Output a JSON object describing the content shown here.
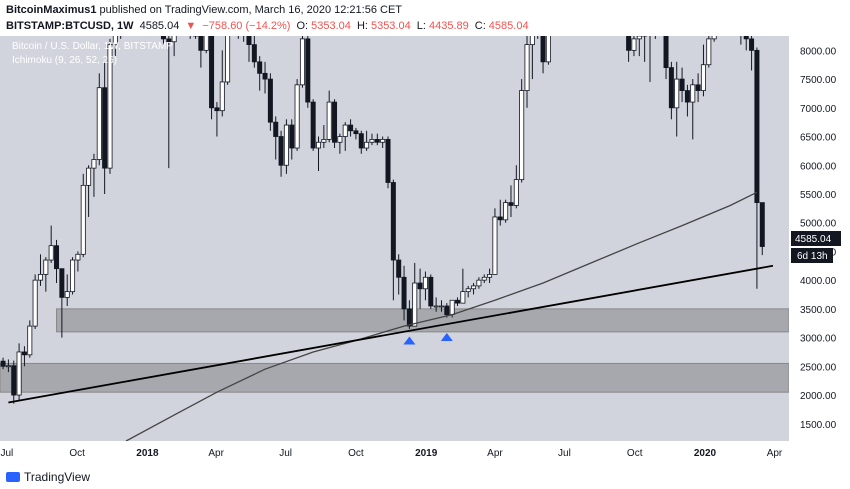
{
  "header": {
    "author": "BitcoinMaximus1",
    "published": "published on TradingView.com, March 16, 2020 12:21:56 CET",
    "symbol": "BITSTAMP:BTCUSD, 1W",
    "price": "4585.04",
    "arrow": "▼",
    "change": "−758.60 (−14.2%)",
    "open_label": "O:",
    "open": "5353.04",
    "high_label": "H:",
    "high": "5353.04",
    "low_label": "L:",
    "low": "4435.89",
    "close_label": "C:",
    "close": "4585.04"
  },
  "legend": {
    "title": "Bitcoin / U.S. Dollar, 1W, BITSTAMP",
    "indicator": "Ichimoku (9, 26, 52, 26)"
  },
  "price_tag": "4585.04",
  "countdown_tag": "6d 13h",
  "footer": {
    "brand": "TradingView"
  },
  "colors": {
    "background": "#d1d4dc",
    "candle": "#131722",
    "zone": "#a6a8ad",
    "ma_line": "#444444",
    "trendline": "#000000",
    "marker": "#2962ff",
    "price_tag_bg": "#131722"
  },
  "chart_data": {
    "type": "candlestick",
    "y_axis": {
      "ticks": [
        1500,
        2000,
        2500,
        3000,
        3500,
        4000,
        4500,
        5000,
        5500,
        6000,
        6500,
        7000,
        7500,
        8000
      ],
      "range": [
        1200,
        8250
      ]
    },
    "x_axis": {
      "ticks": [
        {
          "label": "Jul",
          "date": "2017-07-01"
        },
        {
          "label": "Oct",
          "date": "2017-10-01"
        },
        {
          "label": "2018",
          "date": "2018-01-01",
          "bold": true
        },
        {
          "label": "Apr",
          "date": "2018-04-01"
        },
        {
          "label": "Jul",
          "date": "2018-07-01"
        },
        {
          "label": "Oct",
          "date": "2018-10-01"
        },
        {
          "label": "2019",
          "date": "2019-01-01",
          "bold": true
        },
        {
          "label": "Apr",
          "date": "2019-04-01"
        },
        {
          "label": "Jul",
          "date": "2019-07-01"
        },
        {
          "label": "Oct",
          "date": "2019-10-01"
        },
        {
          "label": "2020",
          "date": "2020-01-01",
          "bold": true
        },
        {
          "label": "Apr",
          "date": "2020-04-01"
        }
      ],
      "range": [
        "2017-06-22",
        "2020-04-20"
      ]
    },
    "candles": [
      {
        "date": "2017-06-26",
        "o": 2590,
        "h": 2650,
        "l": 2450,
        "c": 2500
      },
      {
        "date": "2017-07-03",
        "o": 2500,
        "h": 2620,
        "l": 2400,
        "c": 2510
      },
      {
        "date": "2017-07-10",
        "o": 2510,
        "h": 2600,
        "l": 1850,
        "c": 2000
      },
      {
        "date": "2017-07-17",
        "o": 2000,
        "h": 2900,
        "l": 1900,
        "c": 2750
      },
      {
        "date": "2017-07-24",
        "o": 2750,
        "h": 2850,
        "l": 2500,
        "c": 2700
      },
      {
        "date": "2017-07-31",
        "o": 2700,
        "h": 3300,
        "l": 2650,
        "c": 3200
      },
      {
        "date": "2017-08-07",
        "o": 3200,
        "h": 4100,
        "l": 3150,
        "c": 4000
      },
      {
        "date": "2017-08-14",
        "o": 4000,
        "h": 4450,
        "l": 3900,
        "c": 4100
      },
      {
        "date": "2017-08-21",
        "o": 4100,
        "h": 4400,
        "l": 3800,
        "c": 4350
      },
      {
        "date": "2017-08-28",
        "o": 4350,
        "h": 4950,
        "l": 4300,
        "c": 4600
      },
      {
        "date": "2017-09-04",
        "o": 4600,
        "h": 4700,
        "l": 3950,
        "c": 4200
      },
      {
        "date": "2017-09-11",
        "o": 4200,
        "h": 4200,
        "l": 3000,
        "c": 3700
      },
      {
        "date": "2017-09-18",
        "o": 3700,
        "h": 4100,
        "l": 3550,
        "c": 3800
      },
      {
        "date": "2017-09-25",
        "o": 3800,
        "h": 4400,
        "l": 3750,
        "c": 4350
      },
      {
        "date": "2017-10-02",
        "o": 4350,
        "h": 4500,
        "l": 4150,
        "c": 4450
      },
      {
        "date": "2017-10-09",
        "o": 4450,
        "h": 5850,
        "l": 4400,
        "c": 5650
      },
      {
        "date": "2017-10-16",
        "o": 5650,
        "h": 6000,
        "l": 5100,
        "c": 5950
      },
      {
        "date": "2017-10-23",
        "o": 5950,
        "h": 6200,
        "l": 5450,
        "c": 6100
      },
      {
        "date": "2017-10-30",
        "o": 6100,
        "h": 7600,
        "l": 6000,
        "c": 7350
      },
      {
        "date": "2017-11-06",
        "o": 7350,
        "h": 7800,
        "l": 5500,
        "c": 5950
      },
      {
        "date": "2017-11-13",
        "o": 5950,
        "h": 8200,
        "l": 5850,
        "c": 8100
      },
      {
        "date": "2017-11-20",
        "o": 8100,
        "h": 8300,
        "l": 7900,
        "c": 8300
      },
      {
        "date": "2017-11-27",
        "o": 8300,
        "h": 8300,
        "l": 8200,
        "c": 8300
      },
      {
        "date": "2017-12-04",
        "o": 8300,
        "h": 8300,
        "l": 8250,
        "c": 8300
      },
      {
        "date": "2017-12-11",
        "o": 8300,
        "h": 8300,
        "l": 8250,
        "c": 8300
      },
      {
        "date": "2017-12-18",
        "o": 8300,
        "h": 8300,
        "l": 8250,
        "c": 8300
      },
      {
        "date": "2017-12-25",
        "o": 8300,
        "h": 8300,
        "l": 8250,
        "c": 8300
      },
      {
        "date": "2018-01-01",
        "o": 8300,
        "h": 8300,
        "l": 8250,
        "c": 8300
      },
      {
        "date": "2018-01-08",
        "o": 8300,
        "h": 8300,
        "l": 8250,
        "c": 8300
      },
      {
        "date": "2018-01-15",
        "o": 8300,
        "h": 8300,
        "l": 8250,
        "c": 8300
      },
      {
        "date": "2018-01-22",
        "o": 8300,
        "h": 8300,
        "l": 8100,
        "c": 8200
      },
      {
        "date": "2018-01-29",
        "o": 8200,
        "h": 8300,
        "l": 5950,
        "c": 8150
      },
      {
        "date": "2018-02-05",
        "o": 8150,
        "h": 8300,
        "l": 7900,
        "c": 8300
      },
      {
        "date": "2018-02-12",
        "o": 8300,
        "h": 8300,
        "l": 8250,
        "c": 8300
      },
      {
        "date": "2018-02-19",
        "o": 8300,
        "h": 8300,
        "l": 8250,
        "c": 8300
      },
      {
        "date": "2018-02-26",
        "o": 8300,
        "h": 8300,
        "l": 8200,
        "c": 8300
      },
      {
        "date": "2018-03-05",
        "o": 8300,
        "h": 8300,
        "l": 8200,
        "c": 8250
      },
      {
        "date": "2018-03-12",
        "o": 8250,
        "h": 8300,
        "l": 7700,
        "c": 8000
      },
      {
        "date": "2018-03-19",
        "o": 8000,
        "h": 8300,
        "l": 7950,
        "c": 8300
      },
      {
        "date": "2018-03-26",
        "o": 8300,
        "h": 8300,
        "l": 6800,
        "c": 7000
      },
      {
        "date": "2018-04-02",
        "o": 7000,
        "h": 7100,
        "l": 6500,
        "c": 6950
      },
      {
        "date": "2018-04-09",
        "o": 6950,
        "h": 8000,
        "l": 6850,
        "c": 7450
      },
      {
        "date": "2018-04-16",
        "o": 7450,
        "h": 8300,
        "l": 7400,
        "c": 8300
      },
      {
        "date": "2018-04-23",
        "o": 8300,
        "h": 8300,
        "l": 8250,
        "c": 8300
      },
      {
        "date": "2018-04-30",
        "o": 8300,
        "h": 8300,
        "l": 8200,
        "c": 8300
      },
      {
        "date": "2018-05-07",
        "o": 8300,
        "h": 8300,
        "l": 8150,
        "c": 8300
      },
      {
        "date": "2018-05-14",
        "o": 8300,
        "h": 8300,
        "l": 7800,
        "c": 8100
      },
      {
        "date": "2018-05-21",
        "o": 8100,
        "h": 8300,
        "l": 7700,
        "c": 7800
      },
      {
        "date": "2018-05-28",
        "o": 7800,
        "h": 7900,
        "l": 7300,
        "c": 7600
      },
      {
        "date": "2018-06-04",
        "o": 7600,
        "h": 7800,
        "l": 7250,
        "c": 7500
      },
      {
        "date": "2018-06-11",
        "o": 7500,
        "h": 7600,
        "l": 6600,
        "c": 6750
      },
      {
        "date": "2018-06-18",
        "o": 6750,
        "h": 6850,
        "l": 6100,
        "c": 6500
      },
      {
        "date": "2018-06-25",
        "o": 6500,
        "h": 6600,
        "l": 5800,
        "c": 6000
      },
      {
        "date": "2018-07-02",
        "o": 6000,
        "h": 6800,
        "l": 5850,
        "c": 6700
      },
      {
        "date": "2018-07-09",
        "o": 6700,
        "h": 6800,
        "l": 6100,
        "c": 6300
      },
      {
        "date": "2018-07-16",
        "o": 6300,
        "h": 7500,
        "l": 6250,
        "c": 7400
      },
      {
        "date": "2018-07-23",
        "o": 7400,
        "h": 8300,
        "l": 7350,
        "c": 8200
      },
      {
        "date": "2018-07-30",
        "o": 8200,
        "h": 8300,
        "l": 7000,
        "c": 7100
      },
      {
        "date": "2018-08-06",
        "o": 7100,
        "h": 7150,
        "l": 6250,
        "c": 6300
      },
      {
        "date": "2018-08-13",
        "o": 6300,
        "h": 6500,
        "l": 5900,
        "c": 6400
      },
      {
        "date": "2018-08-20",
        "o": 6400,
        "h": 6700,
        "l": 6300,
        "c": 6450
      },
      {
        "date": "2018-08-27",
        "o": 6450,
        "h": 7300,
        "l": 6400,
        "c": 7100
      },
      {
        "date": "2018-09-03",
        "o": 7100,
        "h": 7150,
        "l": 6300,
        "c": 6400
      },
      {
        "date": "2018-09-10",
        "o": 6400,
        "h": 6550,
        "l": 6200,
        "c": 6500
      },
      {
        "date": "2018-09-17",
        "o": 6500,
        "h": 6750,
        "l": 6250,
        "c": 6700
      },
      {
        "date": "2018-09-24",
        "o": 6700,
        "h": 6800,
        "l": 6500,
        "c": 6600
      },
      {
        "date": "2018-10-01",
        "o": 6600,
        "h": 6650,
        "l": 6450,
        "c": 6550
      },
      {
        "date": "2018-10-08",
        "o": 6550,
        "h": 6600,
        "l": 6200,
        "c": 6300
      },
      {
        "date": "2018-10-15",
        "o": 6300,
        "h": 6600,
        "l": 6250,
        "c": 6400
      },
      {
        "date": "2018-10-22",
        "o": 6400,
        "h": 6550,
        "l": 6350,
        "c": 6450
      },
      {
        "date": "2018-10-29",
        "o": 6450,
        "h": 6550,
        "l": 6350,
        "c": 6400
      },
      {
        "date": "2018-11-05",
        "o": 6400,
        "h": 6500,
        "l": 6300,
        "c": 6450
      },
      {
        "date": "2018-11-12",
        "o": 6450,
        "h": 6500,
        "l": 5600,
        "c": 5700
      },
      {
        "date": "2018-11-19",
        "o": 5700,
        "h": 5750,
        "l": 3650,
        "c": 4350
      },
      {
        "date": "2018-11-26",
        "o": 4350,
        "h": 4450,
        "l": 3750,
        "c": 4050
      },
      {
        "date": "2018-12-03",
        "o": 4050,
        "h": 4250,
        "l": 3300,
        "c": 3500
      },
      {
        "date": "2018-12-10",
        "o": 3500,
        "h": 3650,
        "l": 3150,
        "c": 3200
      },
      {
        "date": "2018-12-17",
        "o": 3200,
        "h": 4300,
        "l": 3200,
        "c": 3950
      },
      {
        "date": "2018-12-24",
        "o": 3950,
        "h": 4200,
        "l": 3500,
        "c": 3850
      },
      {
        "date": "2018-12-31",
        "o": 3850,
        "h": 4150,
        "l": 3650,
        "c": 4050
      },
      {
        "date": "2019-01-07",
        "o": 4050,
        "h": 4100,
        "l": 3500,
        "c": 3550
      },
      {
        "date": "2019-01-14",
        "o": 3550,
        "h": 3700,
        "l": 3450,
        "c": 3550
      },
      {
        "date": "2019-01-21",
        "o": 3550,
        "h": 3650,
        "l": 3450,
        "c": 3550
      },
      {
        "date": "2019-01-28",
        "o": 3550,
        "h": 3600,
        "l": 3350,
        "c": 3400
      },
      {
        "date": "2019-02-04",
        "o": 3400,
        "h": 3650,
        "l": 3350,
        "c": 3650
      },
      {
        "date": "2019-02-11",
        "o": 3650,
        "h": 3700,
        "l": 3550,
        "c": 3600
      },
      {
        "date": "2019-02-18",
        "o": 3600,
        "h": 4200,
        "l": 3600,
        "c": 3800
      },
      {
        "date": "2019-02-25",
        "o": 3800,
        "h": 3900,
        "l": 3700,
        "c": 3850
      },
      {
        "date": "2019-03-04",
        "o": 3850,
        "h": 3950,
        "l": 3750,
        "c": 3900
      },
      {
        "date": "2019-03-11",
        "o": 3900,
        "h": 4050,
        "l": 3850,
        "c": 4000
      },
      {
        "date": "2019-03-18",
        "o": 4000,
        "h": 4100,
        "l": 3950,
        "c": 4050
      },
      {
        "date": "2019-03-25",
        "o": 4050,
        "h": 4200,
        "l": 3950,
        "c": 4100
      },
      {
        "date": "2019-04-01",
        "o": 4100,
        "h": 5250,
        "l": 4100,
        "c": 5100
      },
      {
        "date": "2019-04-08",
        "o": 5100,
        "h": 5400,
        "l": 4950,
        "c": 5050
      },
      {
        "date": "2019-04-15",
        "o": 5050,
        "h": 5400,
        "l": 5000,
        "c": 5350
      },
      {
        "date": "2019-04-22",
        "o": 5350,
        "h": 5650,
        "l": 5100,
        "c": 5300
      },
      {
        "date": "2019-04-29",
        "o": 5300,
        "h": 6000,
        "l": 5250,
        "c": 5750
      },
      {
        "date": "2019-05-06",
        "o": 5750,
        "h": 7500,
        "l": 5700,
        "c": 7300
      },
      {
        "date": "2019-05-13",
        "o": 7300,
        "h": 8300,
        "l": 7000,
        "c": 8100
      },
      {
        "date": "2019-05-20",
        "o": 8100,
        "h": 8300,
        "l": 7500,
        "c": 8300
      },
      {
        "date": "2019-05-27",
        "o": 8300,
        "h": 8300,
        "l": 8200,
        "c": 8300
      },
      {
        "date": "2019-06-03",
        "o": 8300,
        "h": 8300,
        "l": 7600,
        "c": 7800
      },
      {
        "date": "2019-06-10",
        "o": 7800,
        "h": 8300,
        "l": 7750,
        "c": 8300
      },
      {
        "date": "2019-06-17",
        "o": 8300,
        "h": 8300,
        "l": 8250,
        "c": 8300
      },
      {
        "date": "2019-09-23",
        "o": 8300,
        "h": 8300,
        "l": 7800,
        "c": 8000
      },
      {
        "date": "2019-09-30",
        "o": 8000,
        "h": 8300,
        "l": 7900,
        "c": 8200
      },
      {
        "date": "2019-10-07",
        "o": 8200,
        "h": 8300,
        "l": 7900,
        "c": 8250
      },
      {
        "date": "2019-10-14",
        "o": 8250,
        "h": 8300,
        "l": 7800,
        "c": 8300
      },
      {
        "date": "2019-10-21",
        "o": 8300,
        "h": 8300,
        "l": 7450,
        "c": 8300
      },
      {
        "date": "2019-10-28",
        "o": 8300,
        "h": 8300,
        "l": 8200,
        "c": 8300
      },
      {
        "date": "2019-11-04",
        "o": 8300,
        "h": 8300,
        "l": 8250,
        "c": 8300
      },
      {
        "date": "2019-11-11",
        "o": 8300,
        "h": 8300,
        "l": 7500,
        "c": 7700
      },
      {
        "date": "2019-11-18",
        "o": 7700,
        "h": 7800,
        "l": 6800,
        "c": 7000
      },
      {
        "date": "2019-11-25",
        "o": 7000,
        "h": 7800,
        "l": 6500,
        "c": 7500
      },
      {
        "date": "2019-12-02",
        "o": 7500,
        "h": 7700,
        "l": 7100,
        "c": 7300
      },
      {
        "date": "2019-12-09",
        "o": 7300,
        "h": 7400,
        "l": 6850,
        "c": 7100
      },
      {
        "date": "2019-12-16",
        "o": 7100,
        "h": 7500,
        "l": 6450,
        "c": 7400
      },
      {
        "date": "2019-12-23",
        "o": 7400,
        "h": 7600,
        "l": 7100,
        "c": 7300
      },
      {
        "date": "2019-12-30",
        "o": 7300,
        "h": 8100,
        "l": 7200,
        "c": 7750
      },
      {
        "date": "2020-01-06",
        "o": 7750,
        "h": 8300,
        "l": 7700,
        "c": 8200
      },
      {
        "date": "2020-01-13",
        "o": 8200,
        "h": 8300,
        "l": 8150,
        "c": 8300
      },
      {
        "date": "2020-01-20",
        "o": 8300,
        "h": 8300,
        "l": 8250,
        "c": 8300
      },
      {
        "date": "2020-01-27",
        "o": 8300,
        "h": 8300,
        "l": 8250,
        "c": 8300
      },
      {
        "date": "2020-02-03",
        "o": 8300,
        "h": 8300,
        "l": 8250,
        "c": 8300
      },
      {
        "date": "2020-02-10",
        "o": 8300,
        "h": 8300,
        "l": 8250,
        "c": 8300
      },
      {
        "date": "2020-02-17",
        "o": 8300,
        "h": 8300,
        "l": 8100,
        "c": 8300
      },
      {
        "date": "2020-02-24",
        "o": 8300,
        "h": 8300,
        "l": 8000,
        "c": 8200
      },
      {
        "date": "2020-03-02",
        "o": 8200,
        "h": 8300,
        "l": 7650,
        "c": 8000
      },
      {
        "date": "2020-03-09",
        "o": 8000,
        "h": 8050,
        "l": 3850,
        "c": 5350
      },
      {
        "date": "2020-03-16",
        "o": 5350,
        "h": 5350,
        "l": 4435.89,
        "c": 4585.04
      }
    ],
    "zones": [
      {
        "from": 3100,
        "to": 3500
      },
      {
        "from": 2050,
        "to": 2550
      }
    ],
    "ma_line": [
      {
        "date": "2017-12-04",
        "y": 1200
      },
      {
        "date": "2018-02-05",
        "y": 1650
      },
      {
        "date": "2018-04-02",
        "y": 2050
      },
      {
        "date": "2018-06-04",
        "y": 2450
      },
      {
        "date": "2018-08-06",
        "y": 2750
      },
      {
        "date": "2018-10-01",
        "y": 2950
      },
      {
        "date": "2018-12-03",
        "y": 3200
      },
      {
        "date": "2019-02-04",
        "y": 3400
      },
      {
        "date": "2019-04-01",
        "y": 3650
      },
      {
        "date": "2019-06-03",
        "y": 3950
      },
      {
        "date": "2019-08-05",
        "y": 4300
      },
      {
        "date": "2019-10-07",
        "y": 4650
      },
      {
        "date": "2019-12-02",
        "y": 4950
      },
      {
        "date": "2020-02-03",
        "y": 5300
      },
      {
        "date": "2020-03-09",
        "y": 5530
      }
    ],
    "trendline": {
      "from": {
        "date": "2017-07-03",
        "y": 1870
      },
      "to": {
        "date": "2020-03-30",
        "y": 4250
      }
    },
    "markers": [
      {
        "date": "2018-12-10",
        "y": 2950
      },
      {
        "date": "2019-01-28",
        "y": 3010
      }
    ]
  }
}
